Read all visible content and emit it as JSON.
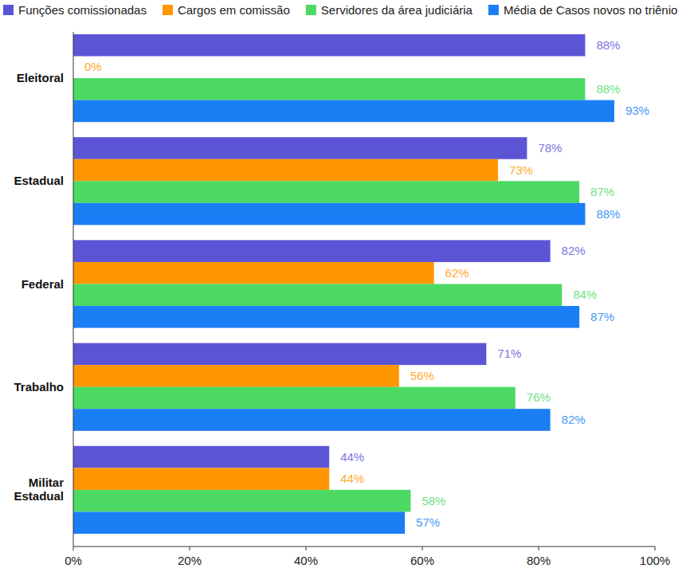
{
  "chart_data": {
    "type": "bar",
    "orientation": "horizontal",
    "categories": [
      "Eleitoral",
      "Estadual",
      "Federal",
      "Trabalho",
      "Militar Estadual"
    ],
    "series": [
      {
        "name": "Funções comissionadas",
        "color": "#5b55d6",
        "values": [
          88,
          78,
          82,
          71,
          44
        ],
        "value_labels": [
          "88%",
          "78%",
          "82%",
          "71%",
          "44%"
        ]
      },
      {
        "name": "Cargos em comissão",
        "color": "#ff9500",
        "values": [
          0,
          73,
          62,
          56,
          44
        ],
        "value_labels": [
          "0%",
          "73%",
          "62%",
          "56%",
          "44%"
        ]
      },
      {
        "name": "Servidores da área judiciária",
        "color": "#4cd964",
        "values": [
          88,
          87,
          84,
          76,
          58
        ],
        "value_labels": [
          "88%",
          "87%",
          "84%",
          "76%",
          "58%"
        ]
      },
      {
        "name": "Média de Casos novos no triênio",
        "color": "#1a7ef5",
        "values": [
          93,
          88,
          87,
          82,
          57
        ],
        "value_labels": [
          "93%",
          "88%",
          "87%",
          "82%",
          "57%"
        ]
      }
    ],
    "xlim": [
      0,
      100
    ],
    "xticks": [
      {
        "value": 0,
        "label": "0%"
      },
      {
        "value": 20,
        "label": "20%"
      },
      {
        "value": 40,
        "label": "40%"
      },
      {
        "value": 60,
        "label": "60%"
      },
      {
        "value": 80,
        "label": "80%"
      },
      {
        "value": 100,
        "label": "100%"
      }
    ],
    "grid": false,
    "legend": "top",
    "data_labels": true
  }
}
